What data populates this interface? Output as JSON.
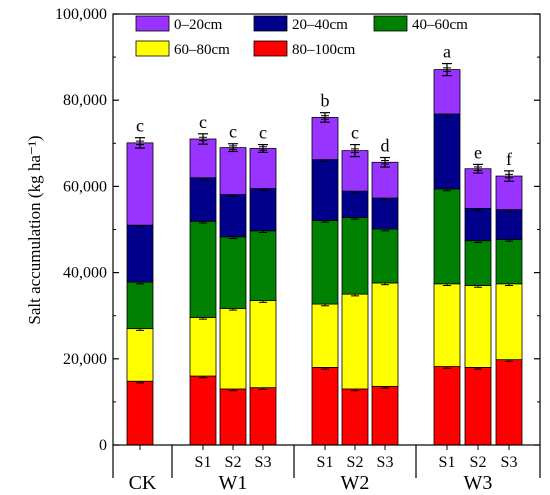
{
  "chart_data": {
    "type": "bar",
    "stacked": true,
    "ylabel": "Salt accumulation (kg ha⁻¹)",
    "ylim": [
      0,
      100000
    ],
    "yticks": [
      0,
      20000,
      40000,
      60000,
      80000,
      100000
    ],
    "ytick_labels": [
      "0",
      "20,000",
      "40,000",
      "60,000",
      "80,000",
      "100,000"
    ],
    "legend_position": "top",
    "groups": [
      {
        "label": "CK",
        "bars": [
          "CK"
        ]
      },
      {
        "label": "W1",
        "bars": [
          "W1S1",
          "W1S2",
          "W1S3"
        ]
      },
      {
        "label": "W2",
        "bars": [
          "W2S1",
          "W2S2",
          "W2S3"
        ]
      },
      {
        "label": "W3",
        "bars": [
          "W3S1",
          "W3S2",
          "W3S3"
        ]
      }
    ],
    "categories": [
      "CK",
      "W1S1",
      "W1S2",
      "W1S3",
      "W2S1",
      "W2S2",
      "W2S3",
      "W3S1",
      "W3S2",
      "W3S3"
    ],
    "sublabels": [
      "",
      "S1",
      "S2",
      "S3",
      "S1",
      "S2",
      "S3",
      "S1",
      "S2",
      "S3"
    ],
    "series": [
      {
        "name": "80–100cm",
        "color": "#ff0000",
        "values": [
          14800,
          16000,
          13000,
          13300,
          18000,
          13000,
          13600,
          18200,
          18000,
          19800
        ]
      },
      {
        "name": "60–80cm",
        "color": "#ffff00",
        "values": [
          12200,
          13600,
          18700,
          20200,
          14700,
          22000,
          24000,
          19200,
          19000,
          17600
        ]
      },
      {
        "name": "40–60cm",
        "color": "#008000",
        "values": [
          10800,
          22300,
          16600,
          16200,
          19400,
          17800,
          12500,
          22000,
          10400,
          10300
        ]
      },
      {
        "name": "20–40cm",
        "color": "#00008b",
        "values": [
          13200,
          10100,
          9800,
          9800,
          14100,
          6100,
          7200,
          17400,
          7500,
          6900
        ]
      },
      {
        "name": "0–20cm",
        "color": "#9933ff",
        "values": [
          19100,
          9000,
          10900,
          9300,
          9800,
          9400,
          8300,
          10300,
          9200,
          7800
        ]
      }
    ],
    "totals": [
      70100,
      71000,
      69000,
      68800,
      76000,
      68300,
      65600,
      87100,
      64100,
      62400
    ],
    "error": [
      1200,
      1200,
      900,
      900,
      1100,
      1400,
      1100,
      1400,
      1000,
      1200
    ],
    "layer_error": 400,
    "significance": [
      "c",
      "c",
      "c",
      "c",
      "b",
      "c",
      "d",
      "a",
      "e",
      "f"
    ]
  }
}
